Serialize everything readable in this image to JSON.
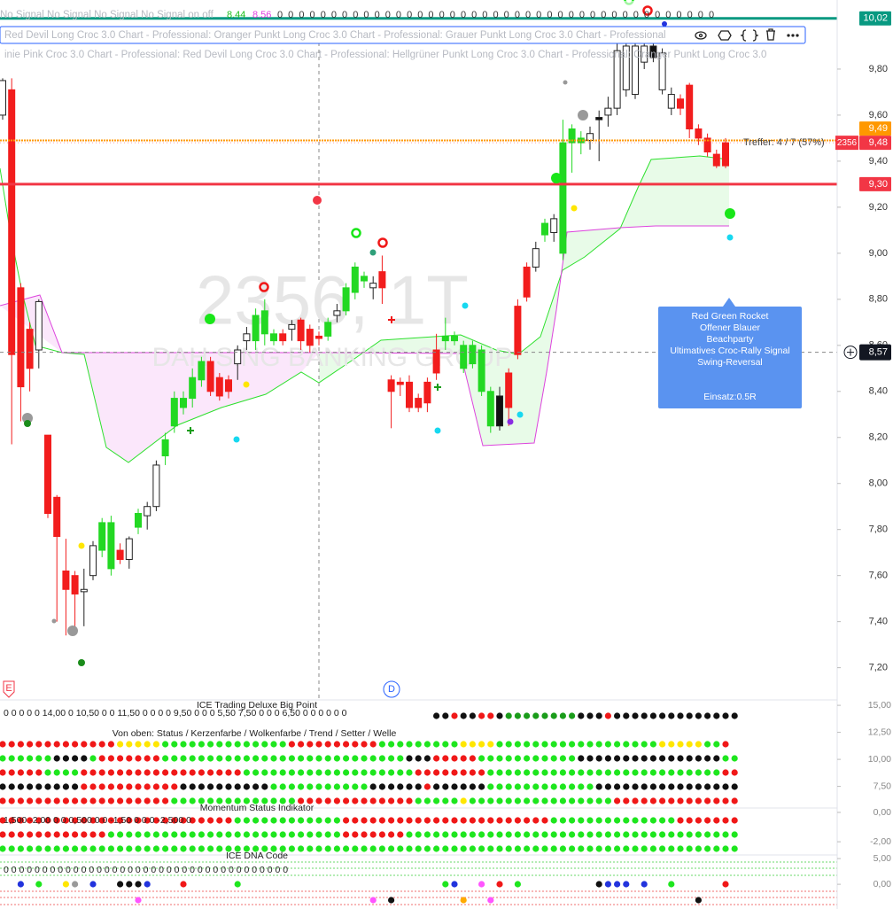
{
  "chart_data": {
    "type": "candlestick",
    "open": [
      9.6,
      9.71,
      8.85,
      8.67,
      8.58,
      8.21,
      7.94,
      7.62,
      7.6,
      7.53,
      7.6,
      7.71,
      7.63,
      7.71,
      7.67,
      7.81,
      7.86,
      7.9,
      8.12,
      8.25,
      8.33,
      8.37,
      8.53,
      8.53,
      8.46,
      8.4,
      8.52,
      8.62,
      8.62,
      8.65,
      8.65,
      8.62,
      8.69,
      8.71,
      8.67,
      8.63,
      8.64,
      8.73,
      8.75,
      8.83,
      8.88,
      8.87,
      8.92,
      8.45,
      8.44,
      8.44,
      8.37,
      8.35,
      8.48,
      8.62,
      8.62,
      8.5,
      8.6,
      8.58,
      8.4,
      8.38,
      8.33,
      8.56,
      8.81,
      8.94,
      9.08,
      9.09,
      9.0,
      9.54,
      9.48,
      9.49,
      9.58,
      9.6,
      9.63,
      9.9,
      9.69,
      9.83,
      9.9,
      9.87,
      9.69,
      9.67,
      9.73,
      9.54,
      9.5,
      9.43,
      9.38
    ],
    "high": [
      9.76,
      9.76,
      8.87,
      8.7,
      8.8,
      8.21,
      7.95,
      7.76,
      7.62,
      7.63,
      7.75,
      7.85,
      7.86,
      7.74,
      7.77,
      7.89,
      7.92,
      8.1,
      8.22,
      8.4,
      8.4,
      8.5,
      8.55,
      8.55,
      8.48,
      8.47,
      8.6,
      8.68,
      8.76,
      8.8,
      8.67,
      8.67,
      8.71,
      8.72,
      8.69,
      8.66,
      8.72,
      8.78,
      8.87,
      8.96,
      8.92,
      8.9,
      8.99,
      8.47,
      8.46,
      8.47,
      8.39,
      8.46,
      8.65,
      8.72,
      8.66,
      8.62,
      8.62,
      8.6,
      8.42,
      8.42,
      8.5,
      8.8,
      8.96,
      9.05,
      9.15,
      9.17,
      9.58,
      9.56,
      9.53,
      9.55,
      9.62,
      9.68,
      9.95,
      9.95,
      9.95,
      9.95,
      9.95,
      9.89,
      9.72,
      9.69,
      9.74,
      9.56,
      9.52,
      9.45,
      9.5
    ],
    "low": [
      9.58,
      8.17,
      8.27,
      8.4,
      8.5,
      7.85,
      7.4,
      7.34,
      7.38,
      7.38,
      7.58,
      7.68,
      7.6,
      7.65,
      7.63,
      7.78,
      7.8,
      7.88,
      8.08,
      8.22,
      8.3,
      8.33,
      8.42,
      8.38,
      8.36,
      8.37,
      8.45,
      8.58,
      8.58,
      8.6,
      8.6,
      8.6,
      8.62,
      8.58,
      8.57,
      8.6,
      8.62,
      8.7,
      8.73,
      8.8,
      8.85,
      8.8,
      8.78,
      8.24,
      8.38,
      8.31,
      8.31,
      8.31,
      8.45,
      8.58,
      8.6,
      8.48,
      8.5,
      8.38,
      8.22,
      8.23,
      8.25,
      8.54,
      8.79,
      8.92,
      9.05,
      9.05,
      8.97,
      9.35,
      9.43,
      9.45,
      9.4,
      9.55,
      9.6,
      9.68,
      9.67,
      9.8,
      9.83,
      9.69,
      9.6,
      9.6,
      9.5,
      9.47,
      9.42,
      9.37,
      9.37
    ],
    "close": [
      9.75,
      8.56,
      8.42,
      8.5,
      8.79,
      7.87,
      7.77,
      7.54,
      7.52,
      7.54,
      7.73,
      7.83,
      7.83,
      7.67,
      7.76,
      7.87,
      7.9,
      8.08,
      8.19,
      8.37,
      8.37,
      8.46,
      8.45,
      8.4,
      8.38,
      8.45,
      8.58,
      8.65,
      8.73,
      8.75,
      8.62,
      8.65,
      8.67,
      8.62,
      8.6,
      8.64,
      8.7,
      8.75,
      8.85,
      8.94,
      8.9,
      8.85,
      8.85,
      8.4,
      8.43,
      8.33,
      8.33,
      8.44,
      8.58,
      8.64,
      8.64,
      8.6,
      8.52,
      8.4,
      8.25,
      8.25,
      8.48,
      8.77,
      8.94,
      9.02,
      9.13,
      9.15,
      9.48,
      9.48,
      9.5,
      9.52,
      9.59,
      9.63,
      9.88,
      9.71,
      9.9,
      9.9,
      9.85,
      9.71,
      9.63,
      9.63,
      9.54,
      9.5,
      9.44,
      9.38,
      9.48
    ],
    "candle_colors": "wrrrwrrrrwwggrwgwwgggggrrrwwgggrwrrrgwgggwrrrrrrrggggggbrrrwgwgggwbwwwwwbwwrrrrrrrrw",
    "candle_palette": {
      "w": "#ffffff",
      "r": "#f21d1d",
      "g": "#23d823",
      "b": "#111111"
    },
    "ylim": [
      7.06,
      10.1
    ],
    "yticks": [
      {
        "value": 9.8,
        "label": "9,80"
      },
      {
        "value": 9.6,
        "label": "9,60"
      },
      {
        "value": 9.4,
        "label": "9,40"
      },
      {
        "value": 9.2,
        "label": "9,20"
      },
      {
        "value": 9.0,
        "label": "9,00"
      },
      {
        "value": 8.8,
        "label": "8,80"
      },
      {
        "value": 8.6,
        "label": "8,60"
      },
      {
        "value": 8.4,
        "label": "8,40"
      },
      {
        "value": 8.2,
        "label": "8,20"
      },
      {
        "value": 8.0,
        "label": "8,00"
      },
      {
        "value": 7.8,
        "label": "7,80"
      },
      {
        "value": 7.6,
        "label": "7,60"
      },
      {
        "value": 7.4,
        "label": "7,40"
      },
      {
        "value": 7.2,
        "label": "7,20"
      }
    ],
    "grid": false,
    "levels": [
      {
        "value": 10.02,
        "label": "10,02",
        "color": "#089981",
        "width": 3
      },
      {
        "value": 9.49,
        "label": "9,49",
        "color": "#ff9800",
        "width": 2
      },
      {
        "value": 9.48,
        "label": "9,48",
        "color": "#f23645",
        "width": 0,
        "tag": "2356"
      },
      {
        "value": 9.3,
        "label": "9,30",
        "color": "#f23645",
        "width": 3
      }
    ],
    "crosshair": {
      "value": 8.57,
      "label": "8,57"
    },
    "hit_text": "Treffer: 4 / 7 (57%)",
    "watermark": "2356, 1T",
    "watermark_sub": "DAH SING BANKING GROUP",
    "annotation": {
      "lines": [
        "Red Green Rocket",
        "Offener Blauer",
        "Beachparty",
        "Ultimatives Croc-Rally Signal",
        "Swing-Reversal"
      ],
      "footer": "Einsatz:0.5R"
    },
    "markers": [
      "E",
      "D"
    ]
  },
  "header": {
    "signals": "No Signal No Signal No Signal No Signal on off",
    "value_a": "8.44",
    "value_b": "8.56",
    "zeros": "0 0 0 0 0 0 0 0 0 0 0 0 0 0 0 0 0 0 0 0 0 0 0 0 0 0 0 0 0 0 0 0 0 0 0 0 0 0 0 0 0",
    "legend_1": "Red Devil Long Croc 3.0 Chart - Professional: Oranger Punkt Long Croc 3.0 Chart - Professional: Grauer Punkt Long Croc 3.0 Chart - Professional",
    "legend_2": "inie Pink Croc 3.0 Chart - Professional: Red Devil Long Croc 3.0 Chart - Professional: Hellgrüner Punkt Long Croc 3.0 Chart - Professional: Oranger Punkt Long Croc 3.0"
  },
  "dot_palette": {
    "g": "#1ee61e",
    "d": "#1a9c1a",
    "r": "#f01818",
    "b": "#111111",
    "y": "#ffe600",
    "c": "#17d8f0",
    "u": "#2233dd",
    "m": "#ff55ff",
    "o": "#ffaa00",
    "s": "#9a9a9a"
  },
  "panes": [
    {
      "title": "ICE Trading Deluxe Big Point",
      "values_text": "0 0 0 0 0 14,00 0 10,50 0 0 11,50 0 0 0 0 9,50 0 0 0 5,50 7,50 0 0 0 6,50 0 0 0 0 0 0",
      "subtitle": "Von oben: Status / Kerzenfarbe / Wolkenfarbe / Trend / Setter / Welle",
      "ylim": [
        5.5,
        15.5
      ],
      "yticks": [
        {
          "value": 15,
          "label": "15,00"
        },
        {
          "value": 12.5,
          "label": "12,50"
        },
        {
          "value": 10,
          "label": "10,00"
        },
        {
          "value": 7.5,
          "label": "7,50"
        }
      ],
      "rows": [
        "................................................bbrbbrrbddddddddbbbrbbbbbbbbbbbbbbb",
        "rrrrrrrrrrrrryyyyyggggggggggggggrrrrrrrrrrgggggggggyyyyggggggggggggggggggyyyyyggr",
        "ggggggbbbbgrrrrrrrgggggggggggggggggggggggggggbbbrrrrrgggggggggggbbbbbbbbbbbbbbbbgg",
        "rrrrrggggrrrrrrrrrrrrrrrrrrgggggggggggggggggggrrrrrrrrggggggggggggggggggggggggggrr",
        "bbbbbbbbbrrrrrrrrrrrbbbbbbbbbbgggggggggggbbbbbbrbbbbbbggggggggggggbbbbbbbbbbbbbbbb",
        "rrrrrrrrrrrrrrrrrrrggggggggggggggrrrrrrrrrrrrrgggggyggggggggggggggggrrrrrrrrrrrrrr"
      ]
    },
    {
      "title": "Momentum Status Indikator",
      "values_text": "1,500 -2,00 0 0 0,500 0 0 -1,50 0 0 0 -2,500 0",
      "ylim": [
        -2.9,
        0.3
      ],
      "yticks": [
        {
          "value": 0,
          "label": "0,00"
        },
        {
          "value": -2,
          "label": "-2,00"
        }
      ],
      "rows": [
        "rrrrrrrrrrrrrrrrrrrrrrrrrrggggggggggggrrrrrrrrrrrrrrrrrrrrrrrggggggggggggggrrrrrrrr",
        "rrrrrrrrrrrrggggggggggggggggggggggggggrrrrrrrgggggggggggggggggggggggggggggggggggggg",
        "ggggggggggggggggggggggggggggggggggggggggggggggggggggggggggggggggggggggggggggggggggg"
      ]
    },
    {
      "title": "ICE DNA Code",
      "values_text": "0 0 0 0 0 0 0 0 0 0 0 0 0 0 0 0 0 0 0 0 0 0 0 0 0 0 0 0 0 0 0 0 0 0 0 0 0",
      "ylim": [
        -4.8,
        5.7
      ],
      "yticks": [
        {
          "value": 5,
          "label": "5,00"
        },
        {
          "value": 0,
          "label": "0,00"
        }
      ],
      "rows": [
        "..u.g..ys.u..bbbu...r.....g......................gu..m.r.g........buuu.u..g.....r",
        "...............m.........................m.b.......o..m......................b...."
      ]
    }
  ]
}
